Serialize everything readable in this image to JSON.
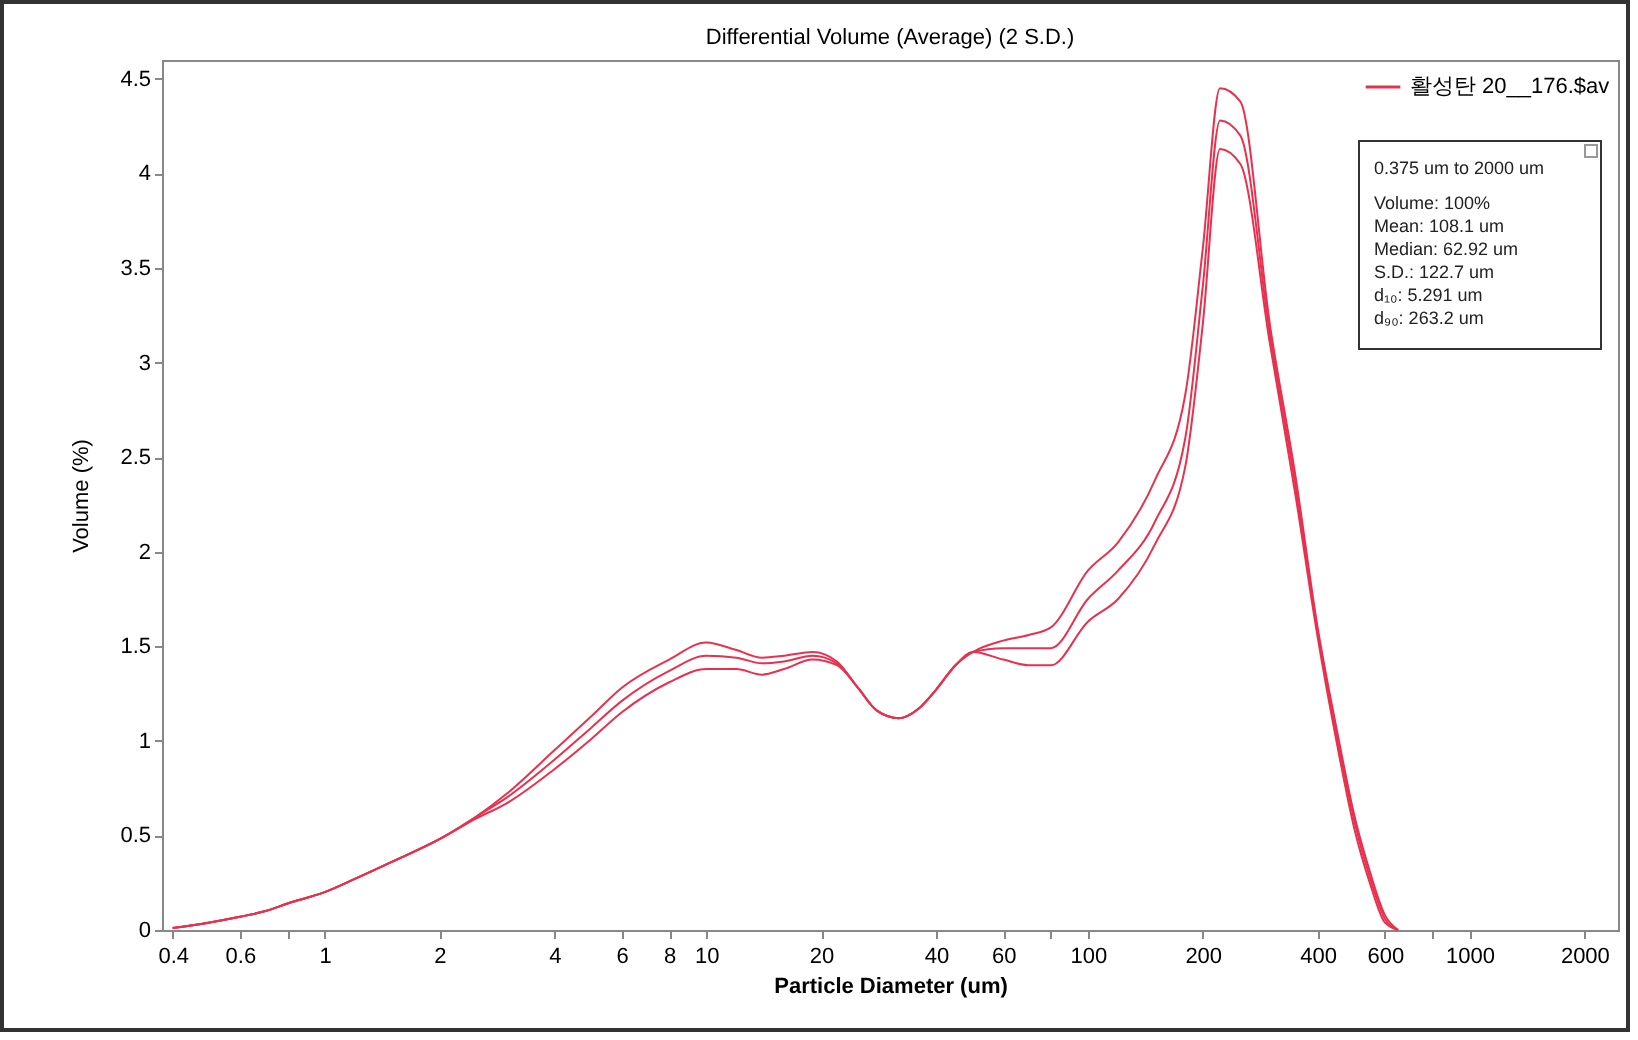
{
  "chart_data": {
    "type": "line",
    "title": "Differential Volume (Average) (2 S.D.)",
    "xlabel": "Particle Diameter (um)",
    "ylabel": "Volume (%)",
    "log": "x",
    "grid": false,
    "legend": "top right",
    "marker": "none",
    "line_style": "solid",
    "x": [
      0.4,
      0.5,
      0.6,
      0.7,
      0.8,
      1,
      1.2,
      1.5,
      2,
      2.5,
      3,
      4,
      5,
      6,
      8,
      10,
      12,
      14,
      16,
      19,
      22,
      25,
      28,
      32,
      36,
      40,
      45,
      50,
      60,
      70,
      80,
      100,
      120,
      150,
      180,
      200,
      222,
      251,
      300,
      350,
      400,
      450,
      500,
      550,
      600,
      650
    ],
    "xlim": [
      0.375,
      2450
    ],
    "ylim": [
      0,
      4.6
    ],
    "xticks": [
      0.4,
      0.6,
      {
        "value": 0.8,
        "label": null
      },
      1,
      2,
      4,
      6,
      8,
      10,
      20,
      40,
      60,
      {
        "value": 80,
        "label": null
      },
      100,
      200,
      400,
      600,
      {
        "value": 800,
        "label": null
      },
      1000,
      2000
    ],
    "yticks": [
      0,
      0.5,
      1,
      1.5,
      2,
      2.5,
      3,
      3.5,
      4,
      4.5
    ],
    "series": [
      {
        "color": "#e8304f",
        "values": [
          0.01,
          0.04,
          0.07,
          0.1,
          0.14,
          0.2,
          0.27,
          0.36,
          0.48,
          0.6,
          0.72,
          0.95,
          1.13,
          1.28,
          1.43,
          1.52,
          1.48,
          1.44,
          1.45,
          1.47,
          1.42,
          1.28,
          1.16,
          1.12,
          1.17,
          1.27,
          1.4,
          1.47,
          1.53,
          1.56,
          1.6,
          1.9,
          2.05,
          2.38,
          2.83,
          3.6,
          4.45,
          4.38,
          3.2,
          2.4,
          1.6,
          1.05,
          0.6,
          0.3,
          0.08,
          0
        ]
      },
      {
        "name": "활성탄 20__176.$av",
        "color": "#e8304f",
        "values": [
          0.01,
          0.04,
          0.07,
          0.1,
          0.14,
          0.2,
          0.27,
          0.36,
          0.48,
          0.6,
          0.7,
          0.9,
          1.07,
          1.21,
          1.37,
          1.45,
          1.44,
          1.41,
          1.42,
          1.45,
          1.41,
          1.28,
          1.16,
          1.12,
          1.17,
          1.27,
          1.4,
          1.47,
          1.49,
          1.49,
          1.49,
          1.75,
          1.9,
          2.16,
          2.6,
          3.4,
          4.28,
          4.2,
          3.15,
          2.35,
          1.58,
          1.02,
          0.57,
          0.27,
          0.06,
          0
        ]
      },
      {
        "color": "#e8304f",
        "values": [
          0.01,
          0.04,
          0.07,
          0.1,
          0.14,
          0.2,
          0.27,
          0.36,
          0.48,
          0.59,
          0.67,
          0.85,
          1.01,
          1.15,
          1.31,
          1.38,
          1.38,
          1.35,
          1.38,
          1.43,
          1.4,
          1.28,
          1.16,
          1.12,
          1.17,
          1.27,
          1.4,
          1.47,
          1.43,
          1.4,
          1.4,
          1.63,
          1.75,
          2.04,
          2.45,
          3.2,
          4.13,
          4.05,
          3.1,
          2.3,
          1.55,
          0.98,
          0.53,
          0.24,
          0.04,
          0
        ]
      }
    ],
    "annotations": [
      "0.375 um to 2000 um",
      "Volume:  100%",
      "Mean:  108.1 um",
      "Median:  62.92 um",
      "S.D.:  122.7 um",
      "d₁₀:  5.291 um",
      "d₉₀:  263.2 um"
    ]
  }
}
